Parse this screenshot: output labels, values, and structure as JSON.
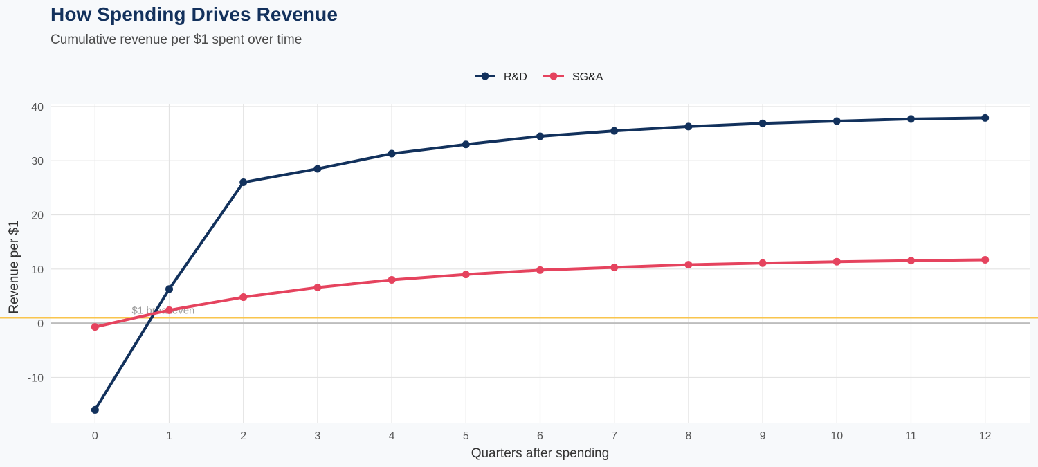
{
  "colors": {
    "rd": "#12315c",
    "sga": "#e5435e",
    "breakeven": "#f9c54e",
    "zero_line": "#bdbdbd",
    "grid": "#e3e3e3",
    "panel": "#ffffff"
  },
  "chart_data": {
    "type": "line",
    "title": "How Spending Drives Revenue",
    "subtitle": "Cumulative revenue per $1 spent over time",
    "xlabel": "Quarters after spending",
    "ylabel": "Revenue per $1",
    "x": [
      0,
      1,
      2,
      3,
      4,
      5,
      6,
      7,
      8,
      9,
      10,
      11,
      12
    ],
    "xlim": [
      -0.6,
      12.6
    ],
    "ylim": [
      -18.5,
      40.5
    ],
    "y_ticks": [
      -10,
      0,
      10,
      20,
      30,
      40
    ],
    "y_tick_labels": [
      "-10",
      "0",
      "10",
      "20",
      "30",
      "40"
    ],
    "x_tick_labels": [
      "0",
      "1",
      "2",
      "3",
      "4",
      "5",
      "6",
      "7",
      "8",
      "9",
      "10",
      "11",
      "12"
    ],
    "grid": true,
    "legend_position": "top-center",
    "series": [
      {
        "name": "R&D",
        "color_key": "rd",
        "values": [
          -16,
          6.3,
          26,
          28.5,
          31.3,
          33,
          34.5,
          35.5,
          36.3,
          36.9,
          37.3,
          37.7,
          37.9
        ]
      },
      {
        "name": "SG&A",
        "color_key": "sga",
        "values": [
          -0.7,
          2.4,
          4.8,
          6.6,
          8.0,
          9.0,
          9.8,
          10.3,
          10.8,
          11.1,
          11.35,
          11.55,
          11.7
        ]
      }
    ],
    "reference_lines": [
      {
        "y": 1,
        "label": "$1 breakeven",
        "label_x": 1.0,
        "color_key": "breakeven"
      },
      {
        "y": 0,
        "label": "",
        "color_key": "zero_line"
      }
    ]
  }
}
